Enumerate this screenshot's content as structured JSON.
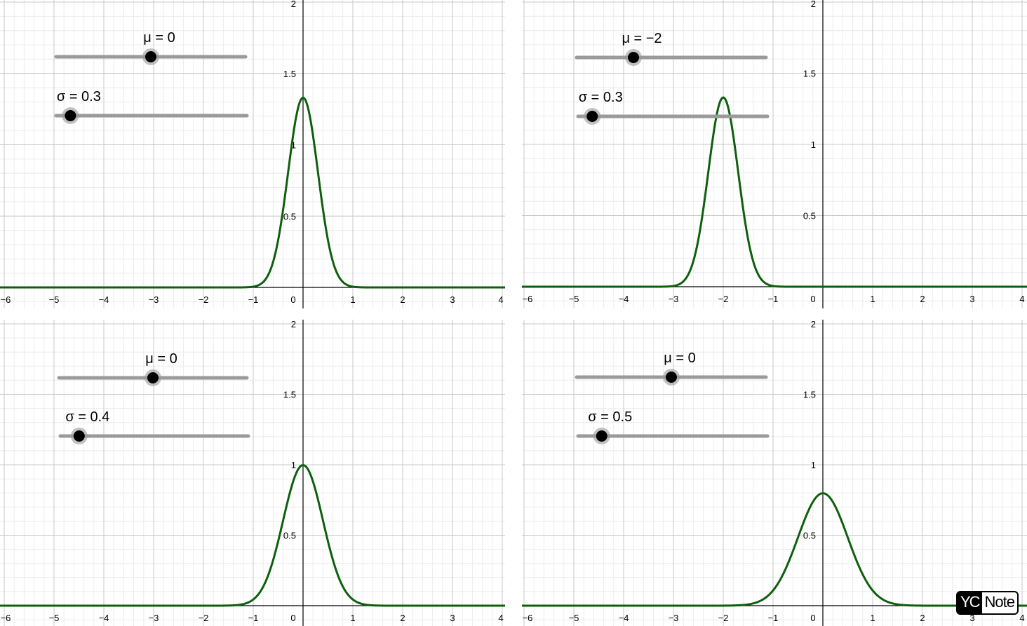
{
  "chart_data": [
    {
      "id": "panel-tl",
      "type": "line",
      "xlim": [
        -6,
        4
      ],
      "ylim": [
        0,
        2
      ],
      "x_ticks": [
        "−6",
        "−5",
        "−4",
        "−3",
        "−2",
        "−1",
        "0",
        "1",
        "2",
        "3",
        "4"
      ],
      "y_ticks": [
        "0.5",
        "1",
        "1.5",
        "2"
      ],
      "grid": true,
      "curve": {
        "function": "normal-pdf",
        "mu": 0,
        "sigma": 0.3,
        "color": "#0d5f0d"
      },
      "sliders": [
        {
          "label": "μ = 0",
          "value": 0,
          "min": -5,
          "max": 5
        },
        {
          "label": "σ = 0.3",
          "value": 0.3,
          "min": 0,
          "max": 4
        }
      ]
    },
    {
      "id": "panel-tr",
      "type": "line",
      "xlim": [
        -6,
        4
      ],
      "ylim": [
        0,
        2
      ],
      "x_ticks": [
        "−6",
        "−5",
        "−4",
        "−3",
        "−2",
        "−1",
        "0",
        "1",
        "2",
        "3",
        "4"
      ],
      "y_ticks": [
        "0.5",
        "1",
        "1.5",
        "2"
      ],
      "grid": true,
      "curve": {
        "function": "normal-pdf",
        "mu": -2,
        "sigma": 0.3,
        "color": "#0d5f0d"
      },
      "sliders": [
        {
          "label": "μ = −2",
          "value": -2,
          "min": -5,
          "max": 5
        },
        {
          "label": "σ = 0.3",
          "value": 0.3,
          "min": 0,
          "max": 4
        }
      ]
    },
    {
      "id": "panel-bl",
      "type": "line",
      "xlim": [
        -6,
        4
      ],
      "ylim": [
        0,
        2
      ],
      "x_ticks": [
        "−6",
        "−5",
        "−4",
        "−3",
        "−2",
        "−1",
        "0",
        "1",
        "2",
        "3",
        "4"
      ],
      "y_ticks": [
        "0.5",
        "1",
        "1.5",
        "2"
      ],
      "grid": true,
      "curve": {
        "function": "normal-pdf",
        "mu": 0,
        "sigma": 0.4,
        "color": "#0d5f0d"
      },
      "sliders": [
        {
          "label": "μ = 0",
          "value": 0,
          "min": -5,
          "max": 5
        },
        {
          "label": "σ = 0.4",
          "value": 0.4,
          "min": 0,
          "max": 4
        }
      ]
    },
    {
      "id": "panel-br",
      "type": "line",
      "xlim": [
        -6,
        4
      ],
      "ylim": [
        0,
        2
      ],
      "x_ticks": [
        "−6",
        "−5",
        "−4",
        "−3",
        "−2",
        "−1",
        "0",
        "1",
        "2",
        "3",
        "4"
      ],
      "y_ticks": [
        "0.5",
        "1",
        "1.5",
        "2"
      ],
      "grid": true,
      "curve": {
        "function": "normal-pdf",
        "mu": 0,
        "sigma": 0.5,
        "color": "#0d5f0d"
      },
      "sliders": [
        {
          "label": "μ = 0",
          "value": 0,
          "min": -5,
          "max": 5
        },
        {
          "label": "σ = 0.5",
          "value": 0.5,
          "min": 0,
          "max": 4
        }
      ]
    }
  ],
  "watermark": {
    "part1": "YC",
    "part2": "Note"
  },
  "colors": {
    "grid_major": "#c8c8c8",
    "grid_minor": "#ececec",
    "axis": "#000000",
    "slider_track": "#9a9a9a",
    "slider_knob": "#000000",
    "curve": "#0d5f0d"
  }
}
